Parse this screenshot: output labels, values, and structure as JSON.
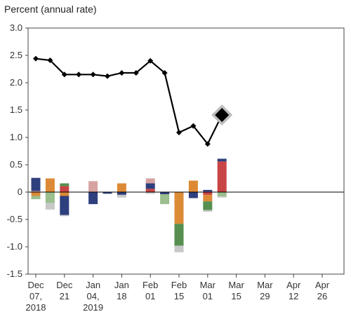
{
  "chart_data": {
    "type": "bar+line",
    "ylabel": "Percent (annual rate)",
    "ylim": [
      -1.5,
      3.0
    ],
    "yticks": [
      "3.0",
      "2.5",
      "2.0",
      "1.5",
      "1.0",
      "0.5",
      "0",
      "-0.5",
      "-1.0",
      "-1.5"
    ],
    "xtick_labels": [
      [
        "Dec",
        "07,",
        "2018"
      ],
      [
        "Dec",
        "21"
      ],
      [
        "Jan",
        "04,",
        "2019"
      ],
      [
        "Jan",
        "18"
      ],
      [
        "Feb",
        "01"
      ],
      [
        "Feb",
        "15"
      ],
      [
        "Mar",
        "01"
      ],
      [
        "Mar",
        "15"
      ],
      [
        "Mar",
        "29"
      ],
      [
        "Apr",
        "12"
      ],
      [
        "Apr",
        "26"
      ]
    ],
    "n_slots": 21,
    "line": {
      "values": [
        2.44,
        2.41,
        2.15,
        2.15,
        2.15,
        2.12,
        2.18,
        2.18,
        2.4,
        2.18,
        1.09,
        1.21,
        0.88,
        1.41
      ],
      "highlight_index": 13
    },
    "series_colors": {
      "blue": "#2e3f7d",
      "orange": "#dd8a36",
      "red": "#c94444",
      "green": "#568f4f",
      "pink": "#d6a3a0",
      "lightgreen": "#9bbf8f",
      "grey": "#c8c8c8"
    },
    "stacked_bars": [
      {
        "pos": [
          {
            "c": "pink",
            "v": 0.02
          },
          {
            "c": "blue",
            "v": 0.24
          }
        ],
        "neg": [
          {
            "c": "orange",
            "v": 0.07
          },
          {
            "c": "lightgreen",
            "v": 0.06
          }
        ]
      },
      {
        "pos": [
          {
            "c": "orange",
            "v": 0.25
          }
        ],
        "neg": [
          {
            "c": "lightgreen",
            "v": 0.2
          },
          {
            "c": "grey",
            "v": 0.12
          }
        ]
      },
      {
        "pos": [
          {
            "c": "red",
            "v": 0.11
          },
          {
            "c": "green",
            "v": 0.05
          }
        ],
        "neg": [
          {
            "c": "orange",
            "v": 0.07
          },
          {
            "c": "blue",
            "v": 0.35
          },
          {
            "c": "grey",
            "v": 0.02
          }
        ]
      },
      {
        "pos": [],
        "neg": []
      },
      {
        "pos": [
          {
            "c": "pink",
            "v": 0.2
          }
        ],
        "neg": [
          {
            "c": "blue",
            "v": 0.22
          }
        ]
      },
      {
        "pos": [],
        "neg": [
          {
            "c": "blue",
            "v": 0.03
          }
        ]
      },
      {
        "pos": [
          {
            "c": "orange",
            "v": 0.16
          }
        ],
        "neg": [
          {
            "c": "blue",
            "v": 0.05
          },
          {
            "c": "grey",
            "v": 0.05
          }
        ]
      },
      {
        "pos": [],
        "neg": []
      },
      {
        "pos": [
          {
            "c": "red",
            "v": 0.06
          },
          {
            "c": "blue",
            "v": 0.1
          },
          {
            "c": "pink",
            "v": 0.09
          }
        ],
        "neg": [
          {
            "c": "grey",
            "v": 0.03
          }
        ]
      },
      {
        "pos": [],
        "neg": [
          {
            "c": "blue",
            "v": 0.04
          },
          {
            "c": "lightgreen",
            "v": 0.18
          }
        ]
      },
      {
        "pos": [],
        "neg": [
          {
            "c": "orange",
            "v": 0.58
          },
          {
            "c": "green",
            "v": 0.4
          },
          {
            "c": "grey",
            "v": 0.12
          }
        ]
      },
      {
        "pos": [
          {
            "c": "orange",
            "v": 0.21
          }
        ],
        "neg": [
          {
            "c": "blue",
            "v": 0.11
          }
        ]
      },
      {
        "pos": [
          {
            "c": "red",
            "v": 0.01
          },
          {
            "c": "blue",
            "v": 0.03
          }
        ],
        "neg": [
          {
            "c": "red",
            "v": 0.05
          },
          {
            "c": "orange",
            "v": 0.12
          },
          {
            "c": "green",
            "v": 0.16
          },
          {
            "c": "grey",
            "v": 0.03
          }
        ]
      },
      {
        "pos": [
          {
            "c": "red",
            "v": 0.56
          },
          {
            "c": "blue",
            "v": 0.05
          }
        ],
        "neg": [
          {
            "c": "lightgreen",
            "v": 0.08
          },
          {
            "c": "grey",
            "v": 0.02
          }
        ]
      }
    ]
  }
}
